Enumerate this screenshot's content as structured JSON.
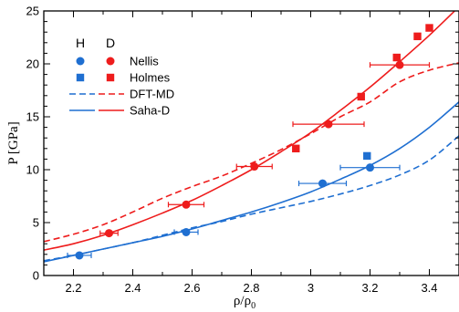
{
  "chart_data": {
    "type": "scatter",
    "title": "",
    "xlabel_main": "ρ/ρ",
    "xlabel_sub": "0",
    "ylabel": "P [GPa]",
    "xlim": [
      2.1,
      3.5
    ],
    "ylim": [
      0,
      25
    ],
    "x_ticks": [
      2.2,
      2.4,
      2.6,
      2.8,
      3.0,
      3.2,
      3.4
    ],
    "x_tick_labels": [
      "2.2",
      "2.4",
      "2.6",
      "2.8",
      "3",
      "3.2",
      "3.4"
    ],
    "y_ticks": [
      0,
      5,
      10,
      15,
      20,
      25
    ],
    "y_tick_labels": [
      "0",
      "5",
      "10",
      "15",
      "20",
      "25"
    ],
    "grid": false,
    "legend_position": "top-left",
    "legend": {
      "col_h": "H",
      "col_d": "D",
      "rows": [
        {
          "label": "Nellis",
          "marker": "circle"
        },
        {
          "label": "Holmes",
          "marker": "square"
        },
        {
          "label": "DFT-MD",
          "line": "dashed"
        },
        {
          "label": "Saha-D",
          "line": "solid"
        }
      ]
    },
    "colors": {
      "H": "#1f6fd1",
      "D": "#ee1c1c"
    },
    "series": [
      {
        "name": "Nellis",
        "isotope": "H",
        "marker": "circle",
        "points": [
          {
            "x": 2.22,
            "y": 1.9,
            "xerr": 0.04
          },
          {
            "x": 2.58,
            "y": 4.1,
            "xerr": 0.04
          },
          {
            "x": 3.04,
            "y": 8.7,
            "xerr": 0.08
          },
          {
            "x": 3.2,
            "y": 10.2,
            "xerr": 0.1
          }
        ]
      },
      {
        "name": "Nellis",
        "isotope": "D",
        "marker": "circle",
        "points": [
          {
            "x": 2.32,
            "y": 4.0,
            "xerr": 0.03
          },
          {
            "x": 2.58,
            "y": 6.7,
            "xerr": 0.06
          },
          {
            "x": 2.81,
            "y": 10.3,
            "xerr": 0.06
          },
          {
            "x": 3.06,
            "y": 14.3,
            "xerr": 0.12
          },
          {
            "x": 3.3,
            "y": 19.9,
            "xerr": 0.1
          }
        ]
      },
      {
        "name": "Holmes",
        "isotope": "H",
        "marker": "square",
        "points": [
          {
            "x": 3.19,
            "y": 11.3
          }
        ]
      },
      {
        "name": "Holmes",
        "isotope": "D",
        "marker": "square",
        "points": [
          {
            "x": 2.95,
            "y": 12.0
          },
          {
            "x": 3.17,
            "y": 16.9
          },
          {
            "x": 3.29,
            "y": 20.6
          },
          {
            "x": 3.36,
            "y": 22.6
          },
          {
            "x": 3.4,
            "y": 23.4
          }
        ]
      },
      {
        "name": "DFT-MD",
        "isotope": "H",
        "line": "dashed",
        "x": [
          2.1,
          2.2,
          2.3,
          2.4,
          2.5,
          2.6,
          2.7,
          2.8,
          2.9,
          3.0,
          3.1,
          3.2,
          3.3,
          3.4,
          3.5
        ],
        "y": [
          1.4,
          1.9,
          2.5,
          3.1,
          3.8,
          4.5,
          5.1,
          5.8,
          6.4,
          7.0,
          7.7,
          8.5,
          9.5,
          10.9,
          13.2
        ]
      },
      {
        "name": "DFT-MD",
        "isotope": "D",
        "line": "dashed",
        "x": [
          2.1,
          2.2,
          2.3,
          2.4,
          2.5,
          2.6,
          2.7,
          2.8,
          2.9,
          3.0,
          3.1,
          3.2,
          3.3,
          3.4,
          3.5
        ],
        "y": [
          3.2,
          3.9,
          4.8,
          6.0,
          7.3,
          8.4,
          9.4,
          10.6,
          11.9,
          13.4,
          15.0,
          16.4,
          18.3,
          19.4,
          20.1
        ]
      },
      {
        "name": "Saha-D",
        "isotope": "H",
        "line": "solid",
        "x": [
          2.1,
          2.2,
          2.3,
          2.4,
          2.5,
          2.6,
          2.7,
          2.8,
          2.9,
          3.0,
          3.1,
          3.2,
          3.3,
          3.4,
          3.5
        ],
        "y": [
          1.3,
          1.9,
          2.5,
          3.1,
          3.7,
          4.4,
          5.2,
          6.0,
          6.9,
          7.9,
          9.1,
          10.4,
          12.0,
          14.0,
          16.4
        ]
      },
      {
        "name": "Saha-D",
        "isotope": "D",
        "line": "solid",
        "x": [
          2.1,
          2.2,
          2.3,
          2.4,
          2.5,
          2.6,
          2.7,
          2.8,
          2.9,
          3.0,
          3.1,
          3.2,
          3.3,
          3.4,
          3.5
        ],
        "y": [
          2.4,
          3.0,
          3.8,
          4.8,
          5.9,
          7.1,
          8.5,
          10.0,
          11.7,
          13.5,
          15.6,
          17.8,
          20.2,
          22.7,
          25.4
        ]
      }
    ]
  }
}
